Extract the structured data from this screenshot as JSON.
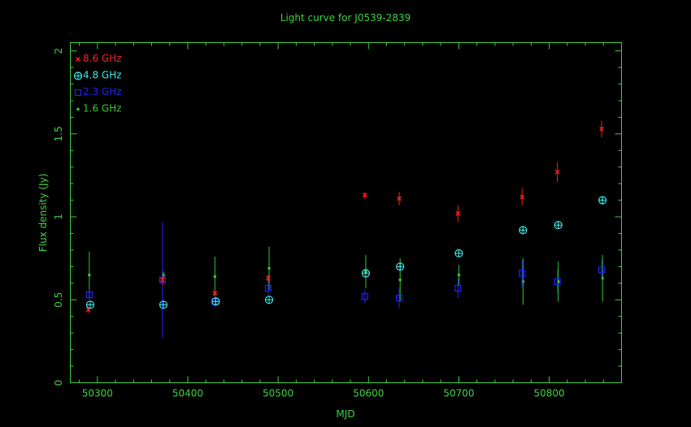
{
  "chart_data": {
    "type": "scatter",
    "title": "Light curve for J0539-2839",
    "xlabel": "MJD",
    "ylabel": "Flux density (Jy)",
    "xlim": [
      50270,
      50880
    ],
    "ylim": [
      0,
      2.05
    ],
    "x_ticks": [
      50300,
      50400,
      50500,
      50600,
      50700,
      50800
    ],
    "y_ticks": [
      0,
      0.5,
      1,
      1.5,
      2
    ],
    "y_tick_labels": [
      "0",
      "0.5",
      "1",
      "1.5",
      "2"
    ],
    "grid": false,
    "legend_position": "top-left",
    "colors": {
      "background": "#000000",
      "axes": "#3fd23f",
      "title": "#3fd23f"
    },
    "series": [
      {
        "name": "8.6 GHz",
        "color": "#ff2020",
        "marker": "cross",
        "x": [
          50290,
          50372,
          50430,
          50489,
          50596,
          50634,
          50699,
          50770,
          50809,
          50858
        ],
        "y": [
          0.44,
          0.62,
          0.54,
          0.63,
          1.13,
          1.11,
          1.02,
          1.12,
          1.27,
          1.53
        ],
        "err": [
          0.02,
          0.03,
          0.02,
          0.02,
          0.02,
          0.04,
          0.05,
          0.05,
          0.06,
          0.05
        ]
      },
      {
        "name": "4.8 GHz",
        "color": "#40e8e8",
        "marker": "circle-plus",
        "x": [
          50292,
          50373,
          50431,
          50490,
          50597,
          50635,
          50700,
          50771,
          50810,
          50859
        ],
        "y": [
          0.47,
          0.47,
          0.49,
          0.5,
          0.66,
          0.7,
          0.78,
          0.92,
          0.95,
          1.1
        ],
        "err": [
          0.01,
          0.01,
          0.01,
          0.01,
          0.01,
          0.02,
          0.02,
          0.02,
          0.02,
          0.02
        ]
      },
      {
        "name": "2.3 GHz",
        "color": "#2222ff",
        "marker": "square",
        "x": [
          50291,
          50372,
          50430,
          50489,
          50596,
          50634,
          50699,
          50770,
          50809,
          50858
        ],
        "y": [
          0.53,
          0.62,
          0.49,
          0.57,
          0.52,
          0.51,
          0.57,
          0.66,
          0.61,
          0.68
        ],
        "err": [
          0.03,
          0.35,
          0.03,
          0.04,
          0.04,
          0.06,
          0.06,
          0.08,
          0.07,
          0.06
        ]
      },
      {
        "name": "1.6 GHz",
        "color": "#30c830",
        "marker": "dot",
        "x": [
          50291,
          50373,
          50430,
          50490,
          50597,
          50635,
          50700,
          50771,
          50810,
          50859
        ],
        "y": [
          0.65,
          0.65,
          0.64,
          0.69,
          0.67,
          0.62,
          0.65,
          0.61,
          0.61,
          0.63
        ],
        "err": [
          0.14,
          0.02,
          0.12,
          0.13,
          0.1,
          0.13,
          0.06,
          0.14,
          0.12,
          0.14
        ]
      }
    ]
  }
}
